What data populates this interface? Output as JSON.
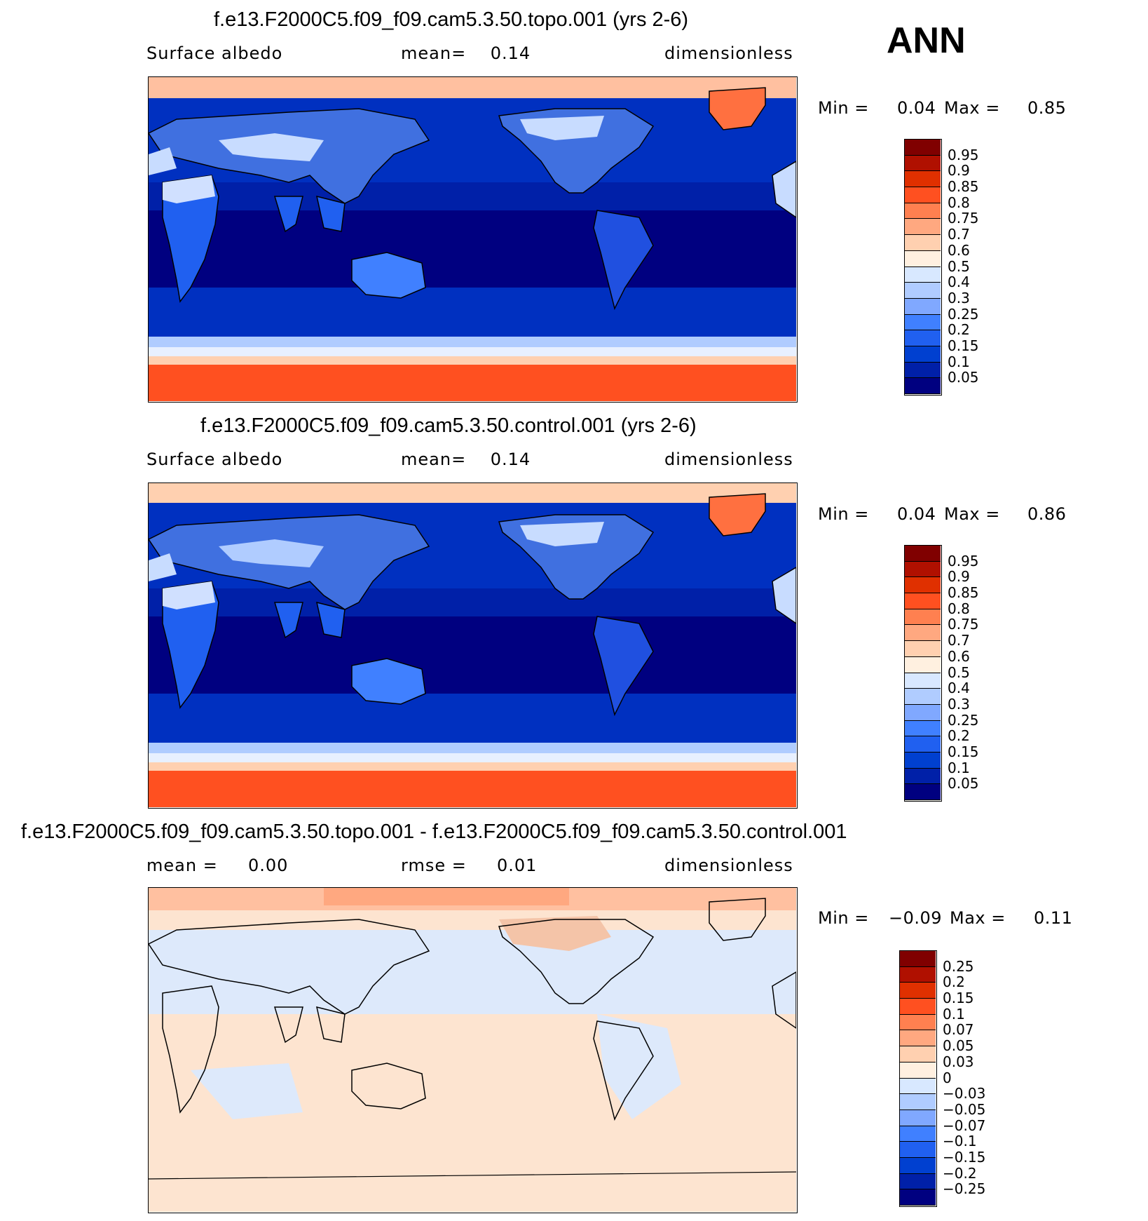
{
  "season": "ANN",
  "panels": [
    {
      "title": "f.e13.F2000C5.f09_f09.cam5.3.50.topo.001 (yrs 2-6)",
      "left_label": "Surface albedo",
      "center_label": "mean=    0.14",
      "right_label": "dimensionless",
      "min_label": "Min =",
      "min_value": "0.04",
      "max_label": "Max =",
      "max_value": "0.85",
      "colorbar_ticks": [
        "0.95",
        "0.9",
        "0.85",
        "0.8",
        "0.75",
        "0.7",
        "0.6",
        "0.5",
        "0.4",
        "0.3",
        "0.25",
        "0.2",
        "0.15",
        "0.1",
        "0.05"
      ]
    },
    {
      "title": "f.e13.F2000C5.f09_f09.cam5.3.50.control.001 (yrs 2-6)",
      "left_label": "Surface albedo",
      "center_label": "mean=    0.14",
      "right_label": "dimensionless",
      "min_label": "Min =",
      "min_value": "0.04",
      "max_label": "Max =",
      "max_value": "0.86",
      "colorbar_ticks": [
        "0.95",
        "0.9",
        "0.85",
        "0.8",
        "0.75",
        "0.7",
        "0.6",
        "0.5",
        "0.4",
        "0.3",
        "0.25",
        "0.2",
        "0.15",
        "0.1",
        "0.05"
      ]
    },
    {
      "title": "f.e13.F2000C5.f09_f09.cam5.3.50.topo.001 - f.e13.F2000C5.f09_f09.cam5.3.50.control.001",
      "left_label": "mean =     0.00",
      "center_label": "rmse =     0.01",
      "right_label": "dimensionless",
      "min_label": "Min =",
      "min_value": "−0.09",
      "max_label": "Max =",
      "max_value": "0.11",
      "colorbar_ticks": [
        "0.25",
        "0.2",
        "0.15",
        "0.1",
        "0.07",
        "0.05",
        "0.03",
        "0",
        "−0.03",
        "−0.05",
        "−0.07",
        "−0.1",
        "−0.15",
        "−0.2",
        "−0.25"
      ]
    }
  ],
  "colorbar_colors": [
    "#000080",
    "#0020a8",
    "#0040d0",
    "#2060f0",
    "#4080ff",
    "#80a8ff",
    "#b0ccff",
    "#d8e8ff",
    "#fff0e0",
    "#ffd0b0",
    "#ffa880",
    "#ff8050",
    "#ff5020",
    "#e03000",
    "#b01000",
    "#800000"
  ],
  "legend": {
    "diff_colors": [
      "#000080",
      "#0020a8",
      "#0040d0",
      "#2060f0",
      "#4080ff",
      "#80a8ff",
      "#b0ccff",
      "#d8e8ff",
      "#fff0e0",
      "#ffd0b0",
      "#ffa880",
      "#ff8050",
      "#ff5020",
      "#e03000",
      "#b01000",
      "#800000"
    ]
  }
}
